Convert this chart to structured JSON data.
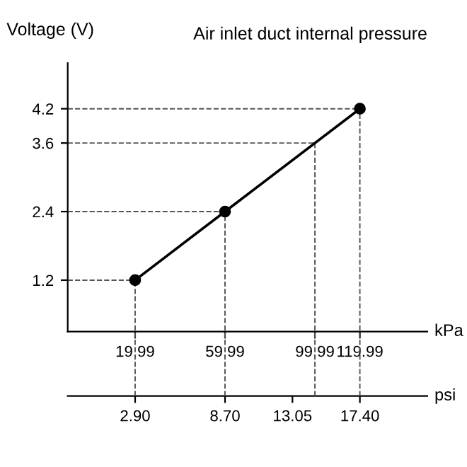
{
  "chart_data": {
    "type": "line",
    "title": "Air inlet duct internal pressure",
    "ylabel": "Voltage (V)",
    "xlabel": "kPa",
    "x2label": "psi",
    "x": [
      19.99,
      59.99,
      119.99
    ],
    "series": [
      {
        "color": "#000000",
        "values": [
          1.2,
          2.4,
          4.2
        ]
      }
    ],
    "marker": "circle",
    "line_style": "solid",
    "grid": false,
    "xlim": [
      -10,
      150
    ],
    "xticks": [
      19.99,
      59.99,
      99.99,
      119.99
    ],
    "x2lim": [
      -1.45,
      21.75
    ],
    "x2ticks": [
      {
        "value": 2.9,
        "label": "2.90"
      },
      {
        "value": 8.7,
        "label": "8.70"
      },
      {
        "value": 13.05,
        "label": "13.05"
      },
      {
        "value": 17.4,
        "label": "17.40"
      }
    ],
    "ylim": [
      0.3,
      5.0
    ],
    "yticks": [
      1.2,
      2.4,
      3.6,
      4.2
    ],
    "ref_lines": [
      {
        "axis": "x",
        "value": 19.99,
        "color": "#555555",
        "line_style": "dashed"
      },
      {
        "axis": "x",
        "value": 59.99,
        "color": "#555555",
        "line_style": "dashed"
      },
      {
        "axis": "x",
        "value": 99.99,
        "color": "#555555",
        "line_style": "dashed"
      },
      {
        "axis": "x",
        "value": 119.99,
        "color": "#555555",
        "line_style": "dashed"
      },
      {
        "axis": "y",
        "value": 1.2,
        "color": "#555555",
        "line_style": "dashed"
      },
      {
        "axis": "y",
        "value": 2.4,
        "color": "#555555",
        "line_style": "dashed"
      },
      {
        "axis": "y",
        "value": 3.6,
        "color": "#555555",
        "line_style": "dashed"
      },
      {
        "axis": "y",
        "value": 4.2,
        "color": "#555555",
        "line_style": "dashed"
      }
    ]
  }
}
